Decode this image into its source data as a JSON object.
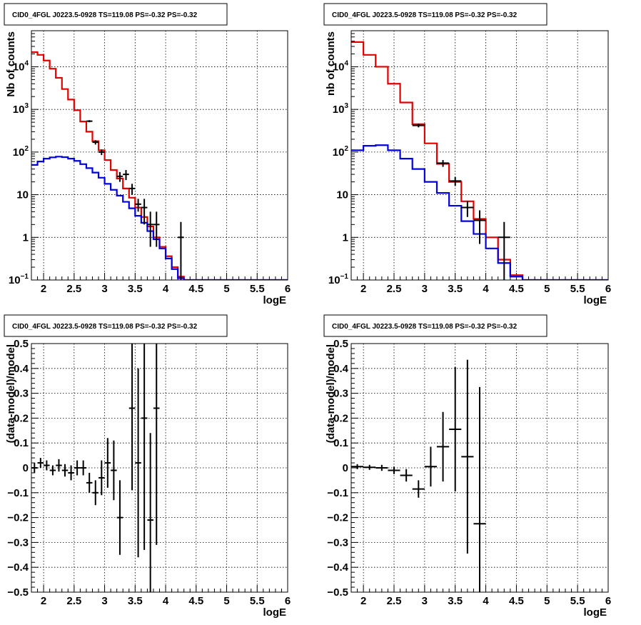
{
  "chart_data": [
    {
      "type": "line",
      "title": "CID0_4FGL J0223.5-0928 TS=119.08 PS=-0.32 PS=-0.32",
      "xlabel": "logE",
      "ylabel": "Nb of counts",
      "xlim": [
        1.8,
        6.0
      ],
      "ylim": [
        0.1,
        70000
      ],
      "yscale": "log",
      "grid": true,
      "x_ticks": [
        "2",
        "2.5",
        "3",
        "3.5",
        "4",
        "4.5",
        "5",
        "5.5",
        "6"
      ],
      "y_ticks": [
        "10^-1",
        "1",
        "10",
        "10^2",
        "10^3",
        "10^4"
      ],
      "binwidth": 0.1,
      "series": [
        {
          "color": "#e00000",
          "style": "histogram",
          "bin_edges": [
            1.8,
            1.9,
            2.0,
            2.1,
            2.2,
            2.3,
            2.4,
            2.5,
            2.6,
            2.7,
            2.8,
            2.9,
            3.0,
            3.1,
            3.2,
            3.3,
            3.4,
            3.5,
            3.6,
            3.7,
            3.8,
            3.9,
            4.0,
            4.1,
            4.2,
            4.3,
            4.4,
            4.5,
            4.6,
            4.7,
            4.8,
            4.9,
            5.0,
            5.1,
            5.2,
            5.3,
            5.4,
            5.5,
            5.6,
            5.7,
            5.8,
            5.9,
            6.0
          ],
          "values": [
            22000,
            19000,
            14000,
            9000,
            5500,
            3000,
            1700,
            960,
            520,
            300,
            180,
            110,
            65,
            38,
            24,
            14,
            8.5,
            5,
            3,
            1.8,
            1.0,
            0.6,
            0.36,
            0.2,
            0.12,
            0.08,
            0.08,
            0.08,
            0.08,
            0.08,
            0.08,
            0.08,
            0.08,
            0.08,
            0.08,
            0.08,
            0.08,
            0.08,
            0.08,
            0.08,
            0.08,
            0.08
          ]
        },
        {
          "color": "#0000e0",
          "style": "histogram",
          "bin_edges": [
            1.8,
            1.9,
            2.0,
            2.1,
            2.2,
            2.3,
            2.4,
            2.5,
            2.6,
            2.7,
            2.8,
            2.9,
            3.0,
            3.1,
            3.2,
            3.3,
            3.4,
            3.5,
            3.6,
            3.7,
            3.8,
            3.9,
            4.0,
            4.1,
            4.2,
            4.3,
            4.4,
            4.5,
            4.6,
            4.7,
            4.8,
            4.9,
            5.0,
            5.1,
            5.2,
            5.3,
            5.4,
            5.5,
            5.6,
            5.7,
            5.8,
            5.9,
            6.0
          ],
          "values": [
            50,
            60,
            70,
            75,
            78,
            76,
            70,
            62,
            52,
            42,
            33,
            25,
            18,
            13,
            9.5,
            6.8,
            4.8,
            3.2,
            2.2,
            1.4,
            0.9,
            0.55,
            0.32,
            0.18,
            0.11,
            0.1,
            0.1,
            0.1,
            0.1,
            0.1,
            0.1,
            0.1,
            0.1,
            0.1,
            0.1,
            0.1,
            0.1,
            0.1,
            0.1,
            0.1,
            0.1,
            0.1
          ]
        },
        {
          "color": "#000000",
          "style": "points",
          "x": [
            2.75,
            2.85,
            2.95,
            3.25,
            3.35,
            3.45,
            3.55,
            3.65,
            3.75,
            3.85,
            4.25
          ],
          "values": [
            530,
            170,
            100,
            27,
            30,
            14,
            6,
            5,
            2,
            2,
            1
          ],
          "err_low": [
            500,
            150,
            85,
            20,
            22,
            10,
            4,
            2,
            0.6,
            0.6,
            0.1
          ],
          "err_high": [
            560,
            190,
            115,
            34,
            38,
            18,
            8,
            8,
            4,
            4,
            2.3
          ]
        }
      ]
    },
    {
      "type": "line",
      "title": "CID0_4FGL J0223.5-0928 TS=119.08 PS=-0.32 PS=-0.32",
      "xlabel": "logE",
      "ylabel": "nb of counts",
      "xlim": [
        1.8,
        6.0
      ],
      "ylim": [
        0.1,
        70000
      ],
      "yscale": "log",
      "grid": true,
      "x_ticks": [
        "2",
        "2.5",
        "3",
        "3.5",
        "4",
        "4.5",
        "5",
        "5.5",
        "6"
      ],
      "y_ticks": [
        "10^-1",
        "1",
        "10",
        "10^2",
        "10^3",
        "10^4"
      ],
      "binwidth": 0.2,
      "series": [
        {
          "color": "#e00000",
          "style": "histogram",
          "bin_edges": [
            1.8,
            2.0,
            2.2,
            2.4,
            2.6,
            2.8,
            3.0,
            3.2,
            3.4,
            3.6,
            3.8,
            4.0,
            4.2,
            4.4,
            4.6,
            4.8,
            5.0,
            5.2,
            5.4,
            5.6,
            5.8,
            6.0
          ],
          "values": [
            38000,
            19000,
            10000,
            4000,
            1450,
            450,
            160,
            53,
            20,
            7,
            2.7,
            1.0,
            0.3,
            0.13,
            0.1,
            0.1,
            0.1,
            0.1,
            0.1,
            0.1,
            0.1
          ]
        },
        {
          "color": "#0000e0",
          "style": "histogram",
          "bin_edges": [
            1.8,
            2.0,
            2.2,
            2.4,
            2.6,
            2.8,
            3.0,
            3.2,
            3.4,
            3.6,
            3.8,
            4.0,
            4.2,
            4.4,
            4.6,
            4.8,
            5.0,
            5.2,
            5.4,
            5.6,
            5.8,
            6.0
          ],
          "values": [
            110,
            140,
            145,
            110,
            70,
            40,
            20,
            11,
            5.5,
            2.4,
            1.2,
            0.55,
            0.25,
            0.12,
            0.1,
            0.1,
            0.1,
            0.1,
            0.1,
            0.1,
            0.1
          ]
        },
        {
          "color": "#000000",
          "style": "points",
          "x": [
            2.9,
            3.3,
            3.5,
            3.7,
            3.9,
            4.3
          ],
          "values": [
            420,
            55,
            21,
            5,
            2.5,
            1
          ],
          "err_low": [
            380,
            45,
            16,
            3,
            0.7,
            0.1
          ],
          "err_high": [
            460,
            65,
            26,
            7,
            4.3,
            2.3
          ]
        }
      ]
    },
    {
      "type": "scatter",
      "title": "CID0_4FGL J0223.5-0928 TS=119.08 PS=-0.32 PS=-0.32",
      "xlabel": "logE",
      "ylabel": "(data-model)/model",
      "xlim": [
        1.8,
        6.0
      ],
      "ylim": [
        -0.5,
        0.5
      ],
      "grid": true,
      "x_ticks": [
        "2",
        "2.5",
        "3",
        "3.5",
        "4",
        "4.5",
        "5",
        "5.5",
        "6"
      ],
      "y_ticks": [
        "−0.5",
        "−0.4",
        "−0.3",
        "−0.2",
        "−0.1",
        "0",
        "0.1",
        "0.2",
        "0.3",
        "0.4",
        "0.5"
      ],
      "binwidth": 0.1,
      "series": [
        {
          "color": "#000000",
          "x": [
            1.85,
            1.95,
            2.05,
            2.15,
            2.25,
            2.35,
            2.45,
            2.55,
            2.65,
            2.75,
            2.85,
            2.95,
            3.05,
            3.15,
            3.25,
            3.45,
            3.55,
            3.65,
            3.75,
            3.85
          ],
          "y": [
            0.0,
            0.02,
            0.01,
            -0.01,
            0.01,
            -0.01,
            -0.02,
            0.0,
            0.0,
            -0.06,
            -0.1,
            -0.04,
            0.02,
            -0.01,
            -0.2,
            0.24,
            0.02,
            0.2,
            -0.21,
            0.24
          ],
          "err": [
            0.02,
            0.02,
            0.02,
            0.02,
            0.025,
            0.025,
            0.03,
            0.03,
            0.03,
            0.04,
            0.05,
            0.07,
            0.1,
            0.12,
            0.15,
            0.33,
            0.38,
            0.53,
            0.35,
            0.55
          ]
        }
      ]
    },
    {
      "type": "scatter",
      "title": "CID0_4FGL J0223.5-0928 TS=119.08 PS=-0.32 PS=-0.32",
      "xlabel": "logE",
      "ylabel": "(data-model)/model",
      "xlim": [
        1.8,
        6.0
      ],
      "ylim": [
        -0.5,
        0.5
      ],
      "grid": true,
      "x_ticks": [
        "2",
        "2.5",
        "3",
        "3.5",
        "4",
        "4.5",
        "5",
        "5.5",
        "6"
      ],
      "y_ticks": [
        "−0.5",
        "−0.4",
        "−0.3",
        "−0.2",
        "−0.1",
        "0",
        "0.1",
        "0.2",
        "0.3",
        "0.4",
        "0.5"
      ],
      "binwidth": 0.2,
      "series": [
        {
          "color": "#000000",
          "x": [
            1.9,
            2.1,
            2.3,
            2.5,
            2.7,
            2.9,
            3.1,
            3.3,
            3.5,
            3.7,
            3.9
          ],
          "y": [
            0.005,
            0.002,
            0.0,
            -0.01,
            -0.03,
            -0.085,
            0.005,
            0.085,
            0.155,
            0.045,
            -0.225
          ],
          "err": [
            0.01,
            0.01,
            0.012,
            0.015,
            0.025,
            0.035,
            0.08,
            0.14,
            0.25,
            0.39,
            0.55
          ]
        }
      ]
    }
  ]
}
